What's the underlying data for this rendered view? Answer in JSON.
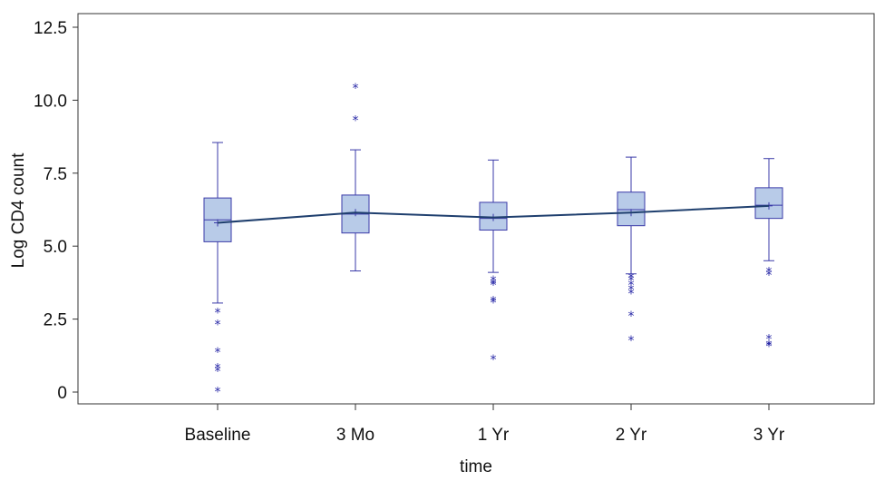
{
  "chart_data": {
    "type": "box",
    "xlabel": "time",
    "ylabel": "Log CD4 count",
    "ylim": [
      0,
      12.5
    ],
    "yticks": [
      "0",
      "2.5",
      "5.0",
      "7.5",
      "10.0",
      "12.5"
    ],
    "ytick_values": [
      0,
      2.5,
      5.0,
      7.5,
      10.0,
      12.5
    ],
    "categories": [
      "Baseline",
      "3 Mo",
      "1 Yr",
      "2 Yr",
      "3 Yr"
    ],
    "boxes": [
      {
        "category": "Baseline",
        "whisker_low": 3.05,
        "q1": 5.15,
        "median": 5.9,
        "q3": 6.65,
        "whisker_high": 8.55,
        "mean": 5.8,
        "outliers": [
          2.75,
          2.35,
          1.4,
          0.85,
          0.75,
          0.05
        ]
      },
      {
        "category": "3 Mo",
        "whisker_low": 4.15,
        "q1": 5.45,
        "median": 6.1,
        "q3": 6.75,
        "whisker_high": 8.3,
        "mean": 6.15,
        "outliers": [
          10.45,
          9.35
        ]
      },
      {
        "category": "1 Yr",
        "whisker_low": 4.1,
        "q1": 5.55,
        "median": 5.95,
        "q3": 6.5,
        "whisker_high": 7.95,
        "mean": 5.98,
        "outliers": [
          3.85,
          3.75,
          3.7,
          3.15,
          3.1,
          1.15
        ]
      },
      {
        "category": "2 Yr",
        "whisker_low": 4.05,
        "q1": 5.7,
        "median": 6.25,
        "q3": 6.85,
        "whisker_high": 8.05,
        "mean": 6.15,
        "outliers": [
          3.95,
          3.85,
          3.7,
          3.55,
          3.4,
          2.65,
          1.8
        ]
      },
      {
        "category": "3 Yr",
        "whisker_low": 4.5,
        "q1": 5.95,
        "median": 6.4,
        "q3": 7.0,
        "whisker_high": 8.0,
        "mean": 6.38,
        "outliers": [
          4.15,
          4.05,
          1.85,
          1.65,
          1.6
        ]
      }
    ],
    "mean_line": true,
    "grid": false,
    "colors": {
      "box_fill": "#b8cbe8",
      "box_stroke": "#3a3aa8",
      "mean_line": "#1f3f6e",
      "outlier": "#2a2aa8"
    },
    "outlier_symbol": "*"
  }
}
